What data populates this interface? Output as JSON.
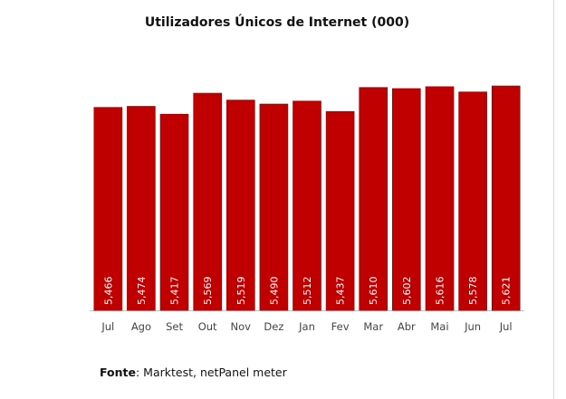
{
  "chart_data": {
    "type": "bar",
    "title": "Utilizadores Únicos de Internet (000)",
    "categories": [
      "Jul",
      "Ago",
      "Set",
      "Out",
      "Nov",
      "Dez",
      "Jan",
      "Fev",
      "Mar",
      "Abr",
      "Mai",
      "Jun",
      "Jul"
    ],
    "values": [
      5466,
      5474,
      5417,
      5569,
      5519,
      5490,
      5512,
      5437,
      5610,
      5602,
      5616,
      5578,
      5621
    ],
    "value_labels": [
      "5,466",
      "5,474",
      "5,417",
      "5,569",
      "5,519",
      "5,490",
      "5,512",
      "5,437",
      "5,610",
      "5,602",
      "5,616",
      "5,578",
      "5,621"
    ],
    "xlabel": "",
    "ylabel": "",
    "ylim": [
      0,
      5621
    ],
    "grid": false,
    "legend": "none",
    "bar_color": "#c00000"
  },
  "source": {
    "label": "Fonte",
    "text": ": Marktest, netPanel meter"
  }
}
